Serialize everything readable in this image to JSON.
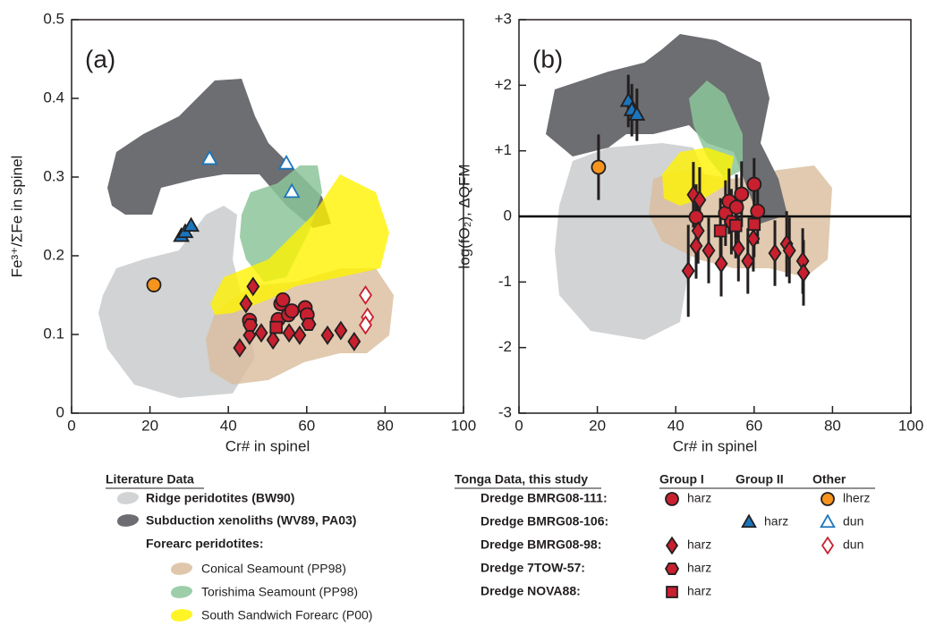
{
  "chart_data": [
    {
      "type": "scatter",
      "panel_label": "(a)",
      "xlabel": "Cr# in spinel",
      "ylabel": "Fe³⁺/ΣFe in spinel",
      "xlim": [
        0,
        100
      ],
      "ylim": [
        0,
        0.5
      ],
      "xticks": [
        0,
        20,
        40,
        60,
        80,
        100
      ],
      "yticks": [
        0,
        0.1,
        0.2,
        0.3,
        0.4,
        0.5
      ],
      "series": [
        {
          "marker": "circle",
          "fill": "#c8202f",
          "stroke": "#231f20",
          "x": [
            45.4,
            53.4,
            53.9,
            52.7,
            55.3,
            56.2,
            59.6,
            60.1
          ],
          "values": [
            0.118,
            0.139,
            0.144,
            0.119,
            0.125,
            0.13,
            0.134,
            0.125
          ]
        },
        {
          "marker": "diamond",
          "fill": "#c8202f",
          "stroke": "#231f20",
          "x": [
            46.3,
            44.5,
            42.9,
            45.4,
            48.4,
            51.4,
            55.5,
            58.2,
            65.3,
            68.7,
            72.1
          ],
          "values": [
            0.161,
            0.139,
            0.083,
            0.099,
            0.102,
            0.093,
            0.102,
            0.099,
            0.099,
            0.105,
            0.091
          ]
        },
        {
          "marker": "hexagon",
          "fill": "#c8202f",
          "stroke": "#231f20",
          "x": [
            45.6,
            60.5
          ],
          "values": [
            0.112,
            0.113
          ]
        },
        {
          "marker": "square",
          "fill": "#c8202f",
          "stroke": "#231f20",
          "x": [
            52.2
          ],
          "values": [
            0.109
          ]
        },
        {
          "marker": "triangle",
          "fill": "#1b75bb",
          "stroke": "#231f20",
          "x": [
            28,
            29,
            30.5
          ],
          "values": [
            0.225,
            0.23,
            0.238
          ]
        },
        {
          "marker": "circle",
          "fill": "#f7941d",
          "stroke": "#231f20",
          "x": [
            21
          ],
          "values": [
            0.163
          ]
        },
        {
          "marker": "triangle",
          "fill": "#ffffff",
          "stroke": "#1b75bb",
          "x": [
            35.2,
            54.8,
            56.2
          ],
          "values": [
            0.323,
            0.317,
            0.281
          ]
        },
        {
          "marker": "diamond",
          "fill": "#ffffff",
          "stroke": "#c8202f",
          "x": [
            75,
            75.5,
            75
          ],
          "values": [
            0.15,
            0.122,
            0.112
          ]
        }
      ]
    },
    {
      "type": "scatter",
      "panel_label": "(b)",
      "xlabel": "Cr# in spinel",
      "ylabel": "log(fO₂), ΔQFM",
      "xlim": [
        0,
        100
      ],
      "ylim": [
        -3,
        3
      ],
      "xticks": [
        0,
        20,
        40,
        60,
        80,
        100
      ],
      "yticks": [
        {
          "value": 3,
          "label": "+3"
        },
        {
          "value": 2,
          "label": "+2"
        },
        {
          "value": 1,
          "label": "+1"
        },
        0,
        -1,
        -2,
        -3
      ],
      "hline": 0,
      "series": [
        {
          "marker": "circle",
          "fill": "#c8202f",
          "stroke": "#231f20",
          "x": [
            45.2,
            52.7,
            53.6,
            55.5,
            56.8,
            60,
            60.9
          ],
          "values": [
            -0.01,
            0.05,
            0.23,
            0.14,
            0.34,
            0.49,
            0.08
          ],
          "errors": [
            0.5,
            0.5,
            0.5,
            0.5,
            0.5,
            0.4,
            0.5
          ]
        },
        {
          "marker": "diamond",
          "fill": "#c8202f",
          "stroke": "#231f20",
          "x": [
            44.5,
            46.1,
            45.7,
            45.2,
            43.2,
            48.4,
            51.6,
            56,
            58.4,
            59.8,
            65.3,
            68.3,
            69,
            72.4,
            72.6
          ],
          "values": [
            0.33,
            0.25,
            -0.22,
            -0.45,
            -0.83,
            -0.52,
            -0.72,
            -0.49,
            -0.68,
            -0.34,
            -0.56,
            -0.42,
            -0.52,
            -0.68,
            -0.86
          ],
          "errors": [
            0.5,
            0.5,
            0.5,
            0.5,
            0.7,
            0.5,
            0.5,
            0.5,
            0.5,
            0.5,
            0.5,
            0.5,
            0.5,
            0.5,
            0.5
          ]
        },
        {
          "marker": "hexagon",
          "fill": "#c8202f",
          "stroke": "#231f20",
          "x": [
            54.2
          ],
          "values": [
            -0.08
          ],
          "errors": [
            0.5
          ]
        },
        {
          "marker": "square",
          "fill": "#c8202f",
          "stroke": "#231f20",
          "x": [
            51.4,
            55.3,
            60
          ],
          "values": [
            -0.22,
            -0.14,
            -0.12
          ],
          "errors": [
            0.5,
            0.5,
            0.5
          ]
        },
        {
          "marker": "triangle",
          "fill": "#1b75bb",
          "stroke": "#231f20",
          "x": [
            27.9,
            28.8,
            30.1
          ],
          "values": [
            1.76,
            1.62,
            1.55
          ],
          "errors": [
            0.4,
            0.4,
            0.4
          ]
        },
        {
          "marker": "circle",
          "fill": "#f7941d",
          "stroke": "#231f20",
          "x": [
            20.3
          ],
          "values": [
            0.75
          ],
          "errors": [
            0.5
          ]
        }
      ]
    }
  ],
  "legend": {
    "literature": {
      "title": "Literature Data",
      "items": [
        {
          "label": "Ridge peridotites (BW90)",
          "color": "#d1d3d4"
        },
        {
          "label": "Subduction xenoliths (WV89, PA03)",
          "color": "#6d6e71"
        }
      ],
      "forearc_title": "Forearc peridotites:",
      "forearc_items": [
        {
          "label": "Conical Seamount (PP98)",
          "color": "#d9bd9c"
        },
        {
          "label": "Torishima Seamount (PP98)",
          "color": "#8cc69a"
        },
        {
          "label": "South Sandwich Forearc (P00)",
          "color": "#fff200"
        }
      ]
    },
    "tonga": {
      "title": "Tonga Data, this study",
      "columns": [
        "Group I",
        "Group II",
        "Other"
      ],
      "rows": [
        {
          "label": "Dredge BMRG08-111:",
          "group_1": {
            "marker": "circle",
            "fill": "#c8202f",
            "stroke": "#231f20",
            "text": "harz"
          },
          "other": {
            "marker": "circle",
            "fill": "#f7941d",
            "stroke": "#231f20",
            "text": "lherz"
          }
        },
        {
          "label": "Dredge BMRG08-106:",
          "group_2": {
            "marker": "triangle",
            "fill": "#1b75bb",
            "stroke": "#231f20",
            "text": "harz"
          },
          "other": {
            "marker": "triangle",
            "fill": "#ffffff",
            "stroke": "#1b75bb",
            "text": "dun"
          }
        },
        {
          "label": "Dredge BMRG08-98:",
          "group_1": {
            "marker": "diamond",
            "fill": "#c8202f",
            "stroke": "#231f20",
            "text": "harz"
          },
          "other": {
            "marker": "diamond",
            "fill": "#ffffff",
            "stroke": "#c8202f",
            "text": "dun"
          }
        },
        {
          "label": "Dredge 7TOW-57:",
          "group_1": {
            "marker": "hexagon",
            "fill": "#c8202f",
            "stroke": "#231f20",
            "text": "harz"
          }
        },
        {
          "label": "Dredge NOVA88:",
          "group_1": {
            "marker": "square",
            "fill": "#c8202f",
            "stroke": "#231f20",
            "text": "harz"
          }
        }
      ]
    }
  }
}
